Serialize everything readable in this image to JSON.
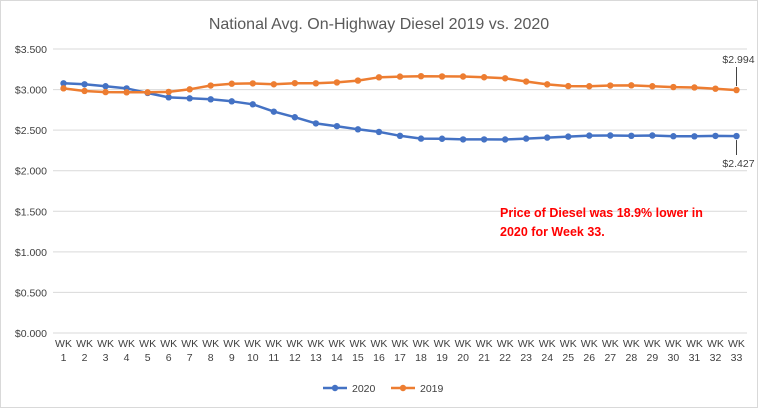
{
  "chart_data": {
    "type": "line",
    "title": "National Avg. On-Highway Diesel 2019 vs. 2020",
    "xlabel": "",
    "ylabel": "",
    "ylim": [
      0,
      3.5
    ],
    "y_ticks": [
      "$0.000",
      "$0.500",
      "$1.000",
      "$1.500",
      "$2.000",
      "$2.500",
      "$3.000",
      "$3.500"
    ],
    "y_tick_values": [
      0,
      0.5,
      1.0,
      1.5,
      2.0,
      2.5,
      3.0,
      3.5
    ],
    "categories": [
      [
        "WK",
        "1"
      ],
      [
        "WK",
        "2"
      ],
      [
        "WK",
        "3"
      ],
      [
        "WK",
        "4"
      ],
      [
        "WK",
        "5"
      ],
      [
        "WK",
        "6"
      ],
      [
        "WK",
        "7"
      ],
      [
        "WK",
        "8"
      ],
      [
        "WK",
        "9"
      ],
      [
        "WK",
        "10"
      ],
      [
        "WK",
        "11"
      ],
      [
        "WK",
        "12"
      ],
      [
        "WK",
        "13"
      ],
      [
        "WK",
        "14"
      ],
      [
        "WK",
        "15"
      ],
      [
        "WK",
        "16"
      ],
      [
        "WK",
        "17"
      ],
      [
        "WK",
        "18"
      ],
      [
        "WK",
        "19"
      ],
      [
        "WK",
        "20"
      ],
      [
        "WK",
        "21"
      ],
      [
        "WK",
        "22"
      ],
      [
        "WK",
        "23"
      ],
      [
        "WK",
        "24"
      ],
      [
        "WK",
        "25"
      ],
      [
        "WK",
        "26"
      ],
      [
        "WK",
        "27"
      ],
      [
        "WK",
        "28"
      ],
      [
        "WK",
        "29"
      ],
      [
        "WK",
        "30"
      ],
      [
        "WK",
        "31"
      ],
      [
        "WK",
        "32"
      ],
      [
        "WK",
        "33"
      ]
    ],
    "series": [
      {
        "name": "2020",
        "color": "#4472c4",
        "values": [
          3.077,
          3.065,
          3.041,
          3.014,
          2.958,
          2.904,
          2.892,
          2.88,
          2.855,
          2.818,
          2.728,
          2.659,
          2.583,
          2.549,
          2.51,
          2.478,
          2.43,
          2.396,
          2.394,
          2.386,
          2.386,
          2.385,
          2.396,
          2.408,
          2.42,
          2.433,
          2.434,
          2.43,
          2.434,
          2.425,
          2.424,
          2.429,
          2.427
        ]
      },
      {
        "name": "2019",
        "color": "#ed7d31",
        "values": [
          3.015,
          2.983,
          2.969,
          2.966,
          2.966,
          2.971,
          3.003,
          3.05,
          3.072,
          3.076,
          3.065,
          3.079,
          3.077,
          3.088,
          3.111,
          3.151,
          3.16,
          3.165,
          3.162,
          3.161,
          3.152,
          3.139,
          3.099,
          3.064,
          3.043,
          3.041,
          3.05,
          3.052,
          3.041,
          3.031,
          3.026,
          3.011,
          2.994
        ]
      }
    ],
    "annotations": [
      {
        "label": "$2.994",
        "series": "2019",
        "index": 32
      },
      {
        "label": "$2.427",
        "series": "2020",
        "index": 32
      }
    ],
    "note": [
      "Price of Diesel was 18.9% lower in",
      "2020  for Week 33."
    ],
    "legend_position": "bottom",
    "grid": true
  }
}
